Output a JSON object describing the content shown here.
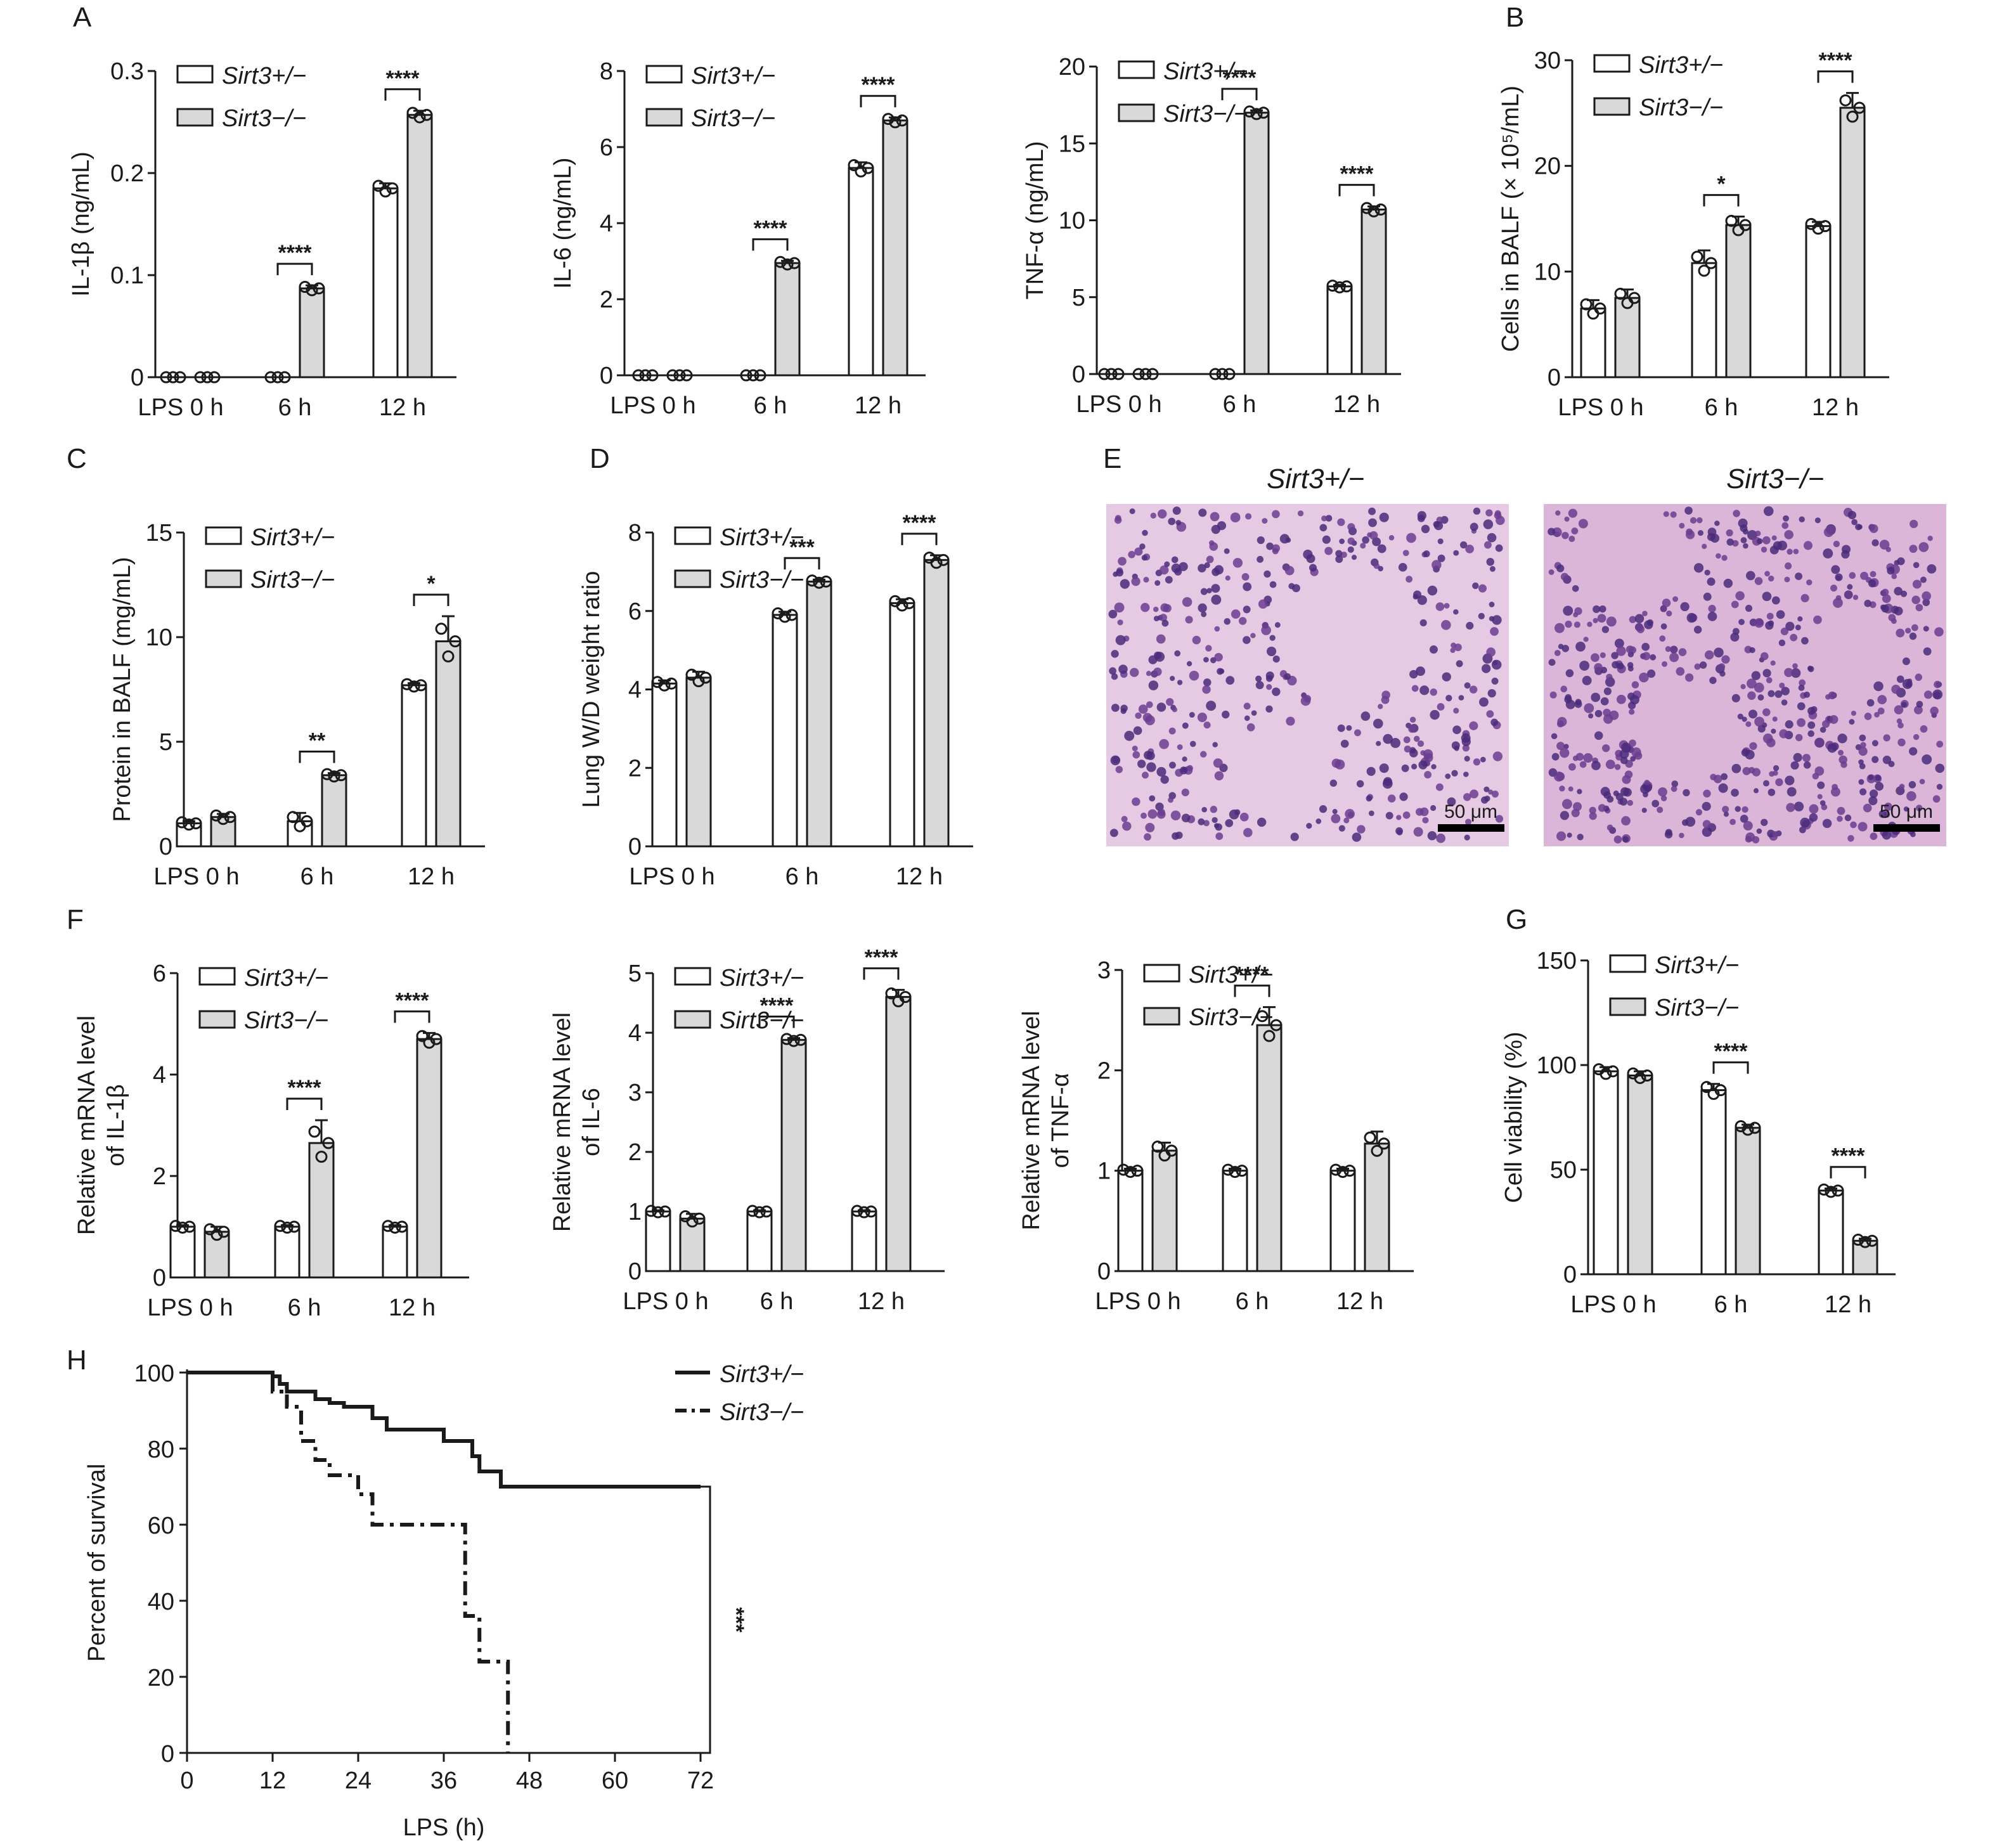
{
  "colors": {
    "het": "#ffffff",
    "ko": "#d9d9d9",
    "stroke": "#1a1a1a"
  },
  "legend": {
    "het": "Sirt3+/−",
    "ko": "Sirt3−/−"
  },
  "micrograph": {
    "titles": [
      "Sirt3+/−",
      "Sirt3−/−"
    ],
    "scale_bar": "50 μm"
  },
  "chart_data": [
    {
      "id": "A-IL1b",
      "panel_label": "A",
      "type": "bar",
      "ylabel": "IL-1β (ng/mL)",
      "ylim": [
        0,
        0.3
      ],
      "yticks": [
        "0",
        "0.1",
        "0.2",
        "0.3"
      ],
      "categories": [
        "LPS 0 h",
        "6 h",
        "12 h"
      ],
      "series": [
        {
          "name": "Sirt3+/−",
          "values": [
            0,
            0,
            0.185
          ]
        },
        {
          "name": "Sirt3−/−",
          "values": [
            0,
            0.087,
            0.257
          ]
        }
      ],
      "errors": [
        [
          0,
          0,
          0.005
        ],
        [
          0,
          0.003,
          0.004
        ]
      ],
      "significance": [
        "",
        "****",
        "****"
      ],
      "legend": "top-left"
    },
    {
      "id": "A-IL6",
      "panel_label": "",
      "type": "bar",
      "ylabel": "IL-6 (ng/mL)",
      "ylim": [
        0,
        8
      ],
      "yticks": [
        "0",
        "2",
        "4",
        "6",
        "8"
      ],
      "categories": [
        "LPS 0 h",
        "6 h",
        "12 h"
      ],
      "series": [
        {
          "name": "Sirt3+/−",
          "values": [
            0,
            0,
            5.45
          ]
        },
        {
          "name": "Sirt3−/−",
          "values": [
            0,
            2.95,
            6.7
          ]
        }
      ],
      "errors": [
        [
          0,
          0,
          0.15
        ],
        [
          0,
          0.06,
          0.08
        ]
      ],
      "significance": [
        "",
        "****",
        "****"
      ],
      "legend": "top-left"
    },
    {
      "id": "A-TNF",
      "panel_label": "",
      "type": "bar",
      "ylabel": "TNF-α (ng/mL)",
      "ylim": [
        0,
        20
      ],
      "yticks": [
        "0",
        "5",
        "10",
        "15",
        "20"
      ],
      "categories": [
        "LPS 0 h",
        "6 h",
        "12 h"
      ],
      "series": [
        {
          "name": "Sirt3+/−",
          "values": [
            0,
            0,
            5.7
          ]
        },
        {
          "name": "Sirt3−/−",
          "values": [
            0,
            17.0,
            10.7
          ]
        }
      ],
      "errors": [
        [
          0,
          0,
          0.1
        ],
        [
          0,
          0.15,
          0.2
        ]
      ],
      "significance": [
        "",
        "****",
        "****"
      ],
      "legend": "top-left"
    },
    {
      "id": "B",
      "panel_label": "B",
      "type": "bar",
      "ylabel": "Cells in BALF (× 10⁵/mL)",
      "ylim": [
        0,
        30
      ],
      "yticks": [
        "0",
        "10",
        "20",
        "30"
      ],
      "categories": [
        "LPS 0 h",
        "6 h",
        "12 h"
      ],
      "series": [
        {
          "name": "Sirt3+/−",
          "values": [
            6.5,
            10.8,
            14.3
          ]
        },
        {
          "name": "Sirt3−/−",
          "values": [
            7.5,
            14.4,
            25.5
          ]
        }
      ],
      "errors": [
        [
          0.8,
          1.2,
          0.4
        ],
        [
          0.8,
          0.8,
          1.4
        ]
      ],
      "significance": [
        "",
        "*",
        "****"
      ],
      "legend": "top-left"
    },
    {
      "id": "C",
      "panel_label": "C",
      "type": "bar",
      "ylabel": "Protein in BALF (mg/mL)",
      "ylim": [
        0,
        15
      ],
      "yticks": [
        "0",
        "5",
        "10",
        "15"
      ],
      "categories": [
        "LPS 0 h",
        "6 h",
        "12 h"
      ],
      "series": [
        {
          "name": "Sirt3+/−",
          "values": [
            1.1,
            1.2,
            7.7
          ]
        },
        {
          "name": "Sirt3−/−",
          "values": [
            1.4,
            3.4,
            9.8
          ]
        }
      ],
      "errors": [
        [
          0.1,
          0.4,
          0.1
        ],
        [
          0.15,
          0.1,
          1.2
        ]
      ],
      "significance": [
        "",
        "**",
        "*"
      ],
      "legend": "top-left"
    },
    {
      "id": "D",
      "panel_label": "D",
      "type": "bar",
      "ylabel": "Lung W/D weight ratio",
      "ylim": [
        0,
        8
      ],
      "yticks": [
        "0",
        "2",
        "4",
        "6",
        "8"
      ],
      "categories": [
        "LPS 0 h",
        "6 h",
        "12 h"
      ],
      "series": [
        {
          "name": "Sirt3+/−",
          "values": [
            4.15,
            5.9,
            6.2
          ]
        },
        {
          "name": "Sirt3−/−",
          "values": [
            4.3,
            6.75,
            7.3
          ]
        }
      ],
      "errors": [
        [
          0.08,
          0.08,
          0.1
        ],
        [
          0.15,
          0.05,
          0.12
        ]
      ],
      "significance": [
        "",
        "***",
        "****"
      ],
      "legend": "top-left"
    },
    {
      "id": "F-IL1b",
      "panel_label": "F",
      "type": "bar",
      "ylabel": "Relative mRNA level\nof IL-1β",
      "ylim": [
        0,
        6
      ],
      "yticks": [
        "0",
        "2",
        "4",
        "6"
      ],
      "categories": [
        "LPS 0 h",
        "6 h",
        "12 h"
      ],
      "series": [
        {
          "name": "Sirt3+/−",
          "values": [
            1,
            1,
            1
          ]
        },
        {
          "name": "Sirt3−/−",
          "values": [
            0.9,
            2.65,
            4.7
          ]
        }
      ],
      "errors": [
        [
          0.03,
          0.03,
          0.03
        ],
        [
          0.1,
          0.45,
          0.12
        ]
      ],
      "significance": [
        "",
        "****",
        "****"
      ],
      "legend": "top-left"
    },
    {
      "id": "F-IL6",
      "panel_label": "",
      "type": "bar",
      "ylabel": "Relative mRNA level\nof IL-6",
      "ylim": [
        0,
        5
      ],
      "yticks": [
        "0",
        "1",
        "2",
        "3",
        "4",
        "5"
      ],
      "categories": [
        "LPS 0 h",
        "6 h",
        "12 h"
      ],
      "series": [
        {
          "name": "Sirt3+/−",
          "values": [
            1,
            1,
            1
          ]
        },
        {
          "name": "Sirt3−/−",
          "values": [
            0.88,
            3.88,
            4.6
          ]
        }
      ],
      "errors": [
        [
          0.02,
          0.02,
          0.02
        ],
        [
          0.08,
          0.03,
          0.12
        ]
      ],
      "significance": [
        "",
        "****",
        "****"
      ],
      "legend": "top-left"
    },
    {
      "id": "F-TNF",
      "panel_label": "",
      "type": "bar",
      "ylabel": "Relative mRNA level\nof TNF-α",
      "ylim": [
        0,
        3
      ],
      "yticks": [
        "0",
        "1",
        "2",
        "3"
      ],
      "categories": [
        "LPS 0 h",
        "6 h",
        "12 h"
      ],
      "series": [
        {
          "name": "Sirt3+/−",
          "values": [
            1,
            1,
            1
          ]
        },
        {
          "name": "Sirt3−/−",
          "values": [
            1.2,
            2.45,
            1.27
          ]
        }
      ],
      "errors": [
        [
          0.02,
          0.02,
          0.02
        ],
        [
          0.08,
          0.18,
          0.12
        ]
      ],
      "significance": [
        "",
        "****",
        ""
      ],
      "legend": "top-left"
    },
    {
      "id": "G",
      "panel_label": "G",
      "type": "bar",
      "ylabel": "Cell viability (%)",
      "ylim": [
        0,
        150
      ],
      "yticks": [
        "0",
        "50",
        "100",
        "150"
      ],
      "categories": [
        "LPS 0 h",
        "6 h",
        "12 h"
      ],
      "series": [
        {
          "name": "Sirt3+/−",
          "values": [
            97,
            88,
            40
          ]
        },
        {
          "name": "Sirt3−/−",
          "values": [
            95,
            70,
            16
          ]
        }
      ],
      "errors": [
        [
          2,
          3,
          1
        ],
        [
          2,
          1.5,
          1
        ]
      ],
      "significance": [
        "",
        "****",
        "****"
      ],
      "legend": "top-left"
    },
    {
      "id": "H",
      "panel_label": "H",
      "type": "line",
      "ylabel": "Percent of survival",
      "xlabel": "LPS (h)",
      "xlim": [
        0,
        72
      ],
      "ylim": [
        0,
        100
      ],
      "xticks": [
        "0",
        "12",
        "24",
        "36",
        "48",
        "60",
        "72"
      ],
      "yticks": [
        "0",
        "20",
        "40",
        "60",
        "80",
        "100"
      ],
      "series": [
        {
          "name": "Sirt3+/−",
          "x": [
            0,
            12,
            12,
            13,
            13,
            14,
            14,
            18,
            18,
            20,
            20,
            22,
            22,
            26,
            26,
            28,
            28,
            32,
            32,
            36,
            36,
            40,
            40,
            41,
            41,
            44,
            44,
            72
          ],
          "y": [
            100,
            100,
            99,
            99,
            97,
            97,
            95,
            95,
            93,
            93,
            92,
            92,
            91,
            91,
            88,
            88,
            85,
            85,
            85,
            85,
            82,
            82,
            78,
            78,
            74,
            74,
            70,
            70
          ]
        },
        {
          "name": "Sirt3−/−",
          "x": [
            0,
            12,
            12,
            14,
            14,
            16,
            16,
            18,
            18,
            20,
            20,
            24,
            24,
            26,
            26,
            39,
            39,
            41,
            41,
            45,
            45
          ],
          "y": [
            100,
            100,
            95,
            95,
            91,
            91,
            82,
            82,
            77,
            77,
            73,
            73,
            68,
            68,
            60,
            60,
            36,
            36,
            24,
            24,
            0
          ]
        }
      ],
      "significance": "***",
      "legend": "top-right"
    }
  ]
}
